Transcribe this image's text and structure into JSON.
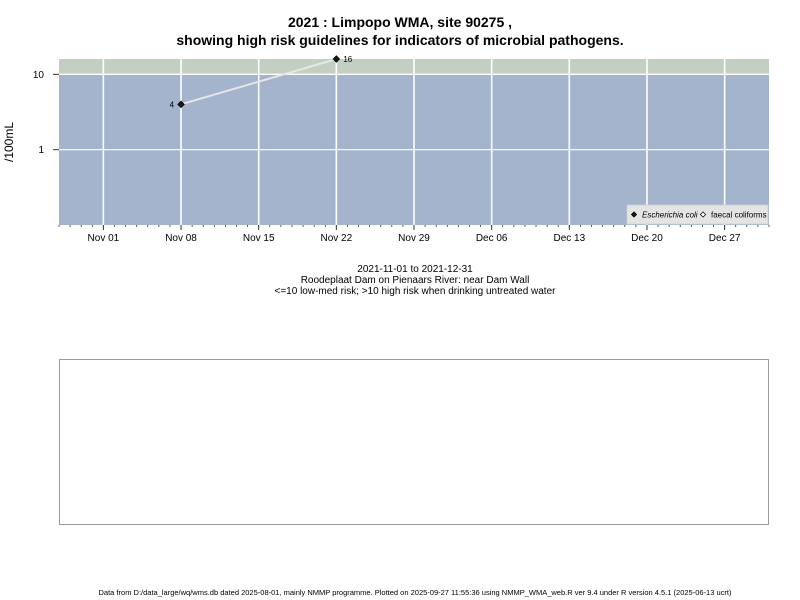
{
  "chart_data": {
    "type": "scatter",
    "title": "2021 : Limpopo WMA, site 90275 ,",
    "subtitle": "showing high risk guidelines for indicators of microbial pathogens.",
    "ylabel": "/100mL",
    "yscale": "log",
    "ylim": [
      0.1,
      16
    ],
    "xlim": [
      "2021-10-28",
      "2021-12-31"
    ],
    "y_ticks": [
      {
        "value": 1,
        "label": "1"
      },
      {
        "value": 10,
        "label": "10"
      }
    ],
    "x_ticks": [
      {
        "date": "2021-11-01",
        "label": "Nov 01"
      },
      {
        "date": "2021-11-08",
        "label": "Nov 08"
      },
      {
        "date": "2021-11-15",
        "label": "Nov 15"
      },
      {
        "date": "2021-11-22",
        "label": "Nov 22"
      },
      {
        "date": "2021-11-29",
        "label": "Nov 29"
      },
      {
        "date": "2021-12-06",
        "label": "Dec 06"
      },
      {
        "date": "2021-12-13",
        "label": "Dec 13"
      },
      {
        "date": "2021-12-20",
        "label": "Dec 20"
      },
      {
        "date": "2021-12-27",
        "label": "Dec 27"
      }
    ],
    "threshold": {
      "value": 10,
      "low_band_color": "#a3b4cc",
      "high_band_color": "#c4cfc4"
    },
    "grid": true,
    "legend_position": "bottom-right",
    "series": [
      {
        "name": "Escherichia coli",
        "marker": "diamond-filled",
        "color": "#1a1a1a",
        "line_color": "#e6e6e6",
        "points": [
          {
            "date": "2021-11-08",
            "value": 4,
            "label": "4"
          },
          {
            "date": "2021-11-22",
            "value": 16,
            "label": "16"
          }
        ]
      },
      {
        "name": "faecal coliforms",
        "marker": "diamond-open",
        "color": "#ffffff",
        "points": []
      }
    ]
  },
  "caption": {
    "date_range": "2021-11-01 to 2021-12-31",
    "location": "Roodeplaat Dam on Pienaars River: near Dam Wall",
    "risk_note": "<=10 low-med risk; >10 high risk when drinking untreated water"
  },
  "footer": "Data from D:/data_large/wq/wms.db dated 2025-08-01, mainly NMMP programme. Plotted on 2025-09-27 11:55:36 using NMMP_WMA_web.R ver 9.4 under R version 4.5.1 (2025-06-13 ucrt)"
}
